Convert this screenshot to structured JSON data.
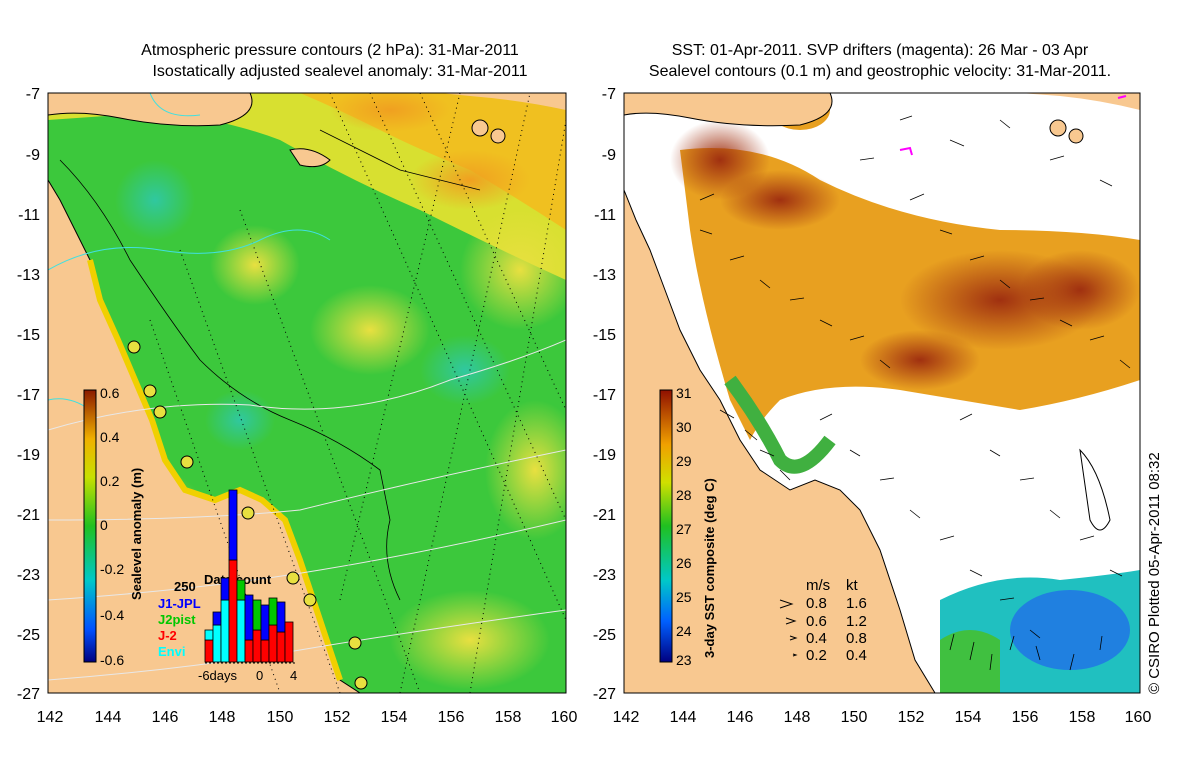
{
  "left_panel": {
    "title_line1": "Atmospheric pressure contours (2 hPa): 31-Mar-2011",
    "title_line2": "Isostatically adjusted sealevel anomaly: 31-Mar-2011",
    "y_ticks": [
      "-7",
      "-9",
      "-11",
      "-13",
      "-15",
      "-17",
      "-19",
      "-21",
      "-23",
      "-25",
      "-27"
    ],
    "x_ticks": [
      "142",
      "144",
      "146",
      "148",
      "150",
      "152",
      "154",
      "156",
      "158",
      "160"
    ],
    "colorbar": {
      "label": "Sealevel anomaly (m)",
      "ticks": [
        "0.6",
        "0.4",
        "0.2",
        "0",
        "-0.2",
        "-0.4",
        "-0.6"
      ]
    },
    "data_count": {
      "title": "Data count",
      "max_label": "250",
      "legend": [
        {
          "name": "J1-JPL",
          "color": "#0000ff"
        },
        {
          "name": "J2pist",
          "color": "#00c800"
        },
        {
          "name": "J-2",
          "color": "#ff0000"
        },
        {
          "name": "Envi",
          "color": "#00ffff"
        }
      ],
      "x_labels": [
        "-6days",
        "0",
        "4"
      ]
    }
  },
  "right_panel": {
    "title_line1": "SST: 01-Apr-2011. SVP drifters (magenta): 26 Mar - 03 Apr",
    "title_line2": "Sealevel contours (0.1 m) and geostrophic velocity: 31-Mar-2011.",
    "y_ticks": [
      "-7",
      "-9",
      "-11",
      "-13",
      "-15",
      "-17",
      "-19",
      "-21",
      "-23",
      "-25",
      "-27"
    ],
    "x_ticks": [
      "142",
      "144",
      "146",
      "148",
      "150",
      "152",
      "154",
      "156",
      "158",
      "160"
    ],
    "colorbar": {
      "label": "3-day SST composite (deg C)",
      "ticks": [
        "31",
        "30",
        "29",
        "28",
        "27",
        "26",
        "25",
        "24",
        "23"
      ]
    },
    "velocity_legend": {
      "header_ms": "m/s",
      "header_kt": "kt",
      "rows": [
        {
          "ms": "0.8",
          "kt": "1.6"
        },
        {
          "ms": "0.6",
          "kt": "1.2"
        },
        {
          "ms": "0.4",
          "kt": "0.8"
        },
        {
          "ms": "0.2",
          "kt": "0.4"
        }
      ]
    }
  },
  "credit": "© CSIRO Plotted 05-Apr-2011 08:32",
  "colors": {
    "land": "#f8c890",
    "ocean_green": "#3cc83c",
    "sst_orange": "#e8a020",
    "sst_dark": "#a03010"
  }
}
